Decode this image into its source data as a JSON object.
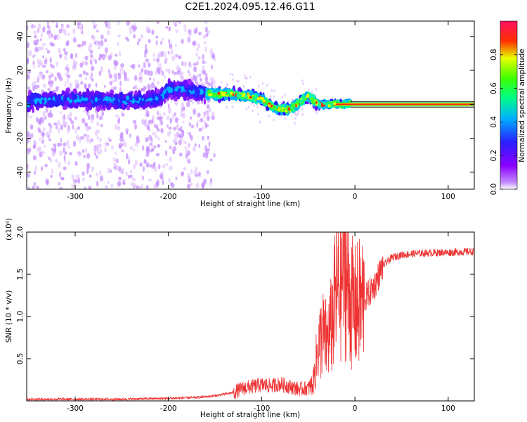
{
  "figure": {
    "title": "C2E1.2024.095.12.46.G11"
  },
  "chart_data": [
    {
      "type": "heatmap",
      "title": "",
      "xlabel": "Height of straight line (km)",
      "ylabel": "Frequency (Hz)",
      "xlim": [
        -352,
        128
      ],
      "ylim": [
        -50,
        49
      ],
      "xticks": [
        -300,
        -200,
        -100,
        0,
        100
      ],
      "xtick_labels": [
        "-300",
        "-200",
        "-100",
        "0",
        "100"
      ],
      "yticks": [
        -40,
        -20,
        0,
        20,
        40
      ],
      "ytick_labels": [
        "-40",
        "-20",
        "0",
        "20",
        "40"
      ],
      "colorbar": {
        "label": "Normalized spectral amplitude",
        "range": [
          0,
          1
        ],
        "ticks": [
          0.0,
          0.2,
          0.4,
          0.6,
          0.8
        ],
        "tick_labels": [
          "0.0",
          "0.2",
          "0.4",
          "0.6",
          "0.8"
        ],
        "colormap": [
          "#ffffff",
          "#8a00ff",
          "#2a20ff",
          "#00e0ff",
          "#00ff40",
          "#e8ff00",
          "#ff3000",
          "#ff1060"
        ]
      },
      "frequency_track": {
        "x": [
          -350,
          -300,
          -250,
          -210,
          -200,
          -180,
          -150,
          -130,
          -115,
          -100,
          -90,
          -80,
          -70,
          -60,
          -50,
          -40,
          -30,
          -20,
          -10,
          0,
          10,
          50,
          100,
          128
        ],
        "y": [
          2,
          3,
          2,
          3,
          9,
          8,
          6,
          6,
          5,
          3,
          -1,
          -3,
          -3,
          1,
          5,
          0,
          0,
          0,
          0,
          1,
          0,
          0,
          0,
          0
        ]
      },
      "grid": false
    },
    {
      "type": "line",
      "title": "",
      "xlabel": "Height of straight line (km)",
      "ylabel": "SNR (10 * v/v)",
      "y_multiplier": "(x10⁴)",
      "xlim": [
        -352,
        128
      ],
      "ylim": [
        0,
        2.0
      ],
      "xticks": [
        -300,
        -200,
        -100,
        0,
        100
      ],
      "xtick_labels": [
        "-300",
        "-200",
        "-100",
        "0",
        "100"
      ],
      "yticks": [
        0.5,
        1.0,
        1.5,
        2.0
      ],
      "ytick_labels": [
        "0.5",
        "1.0",
        "1.5",
        "2.0"
      ],
      "series": [
        {
          "color": "#ee3333",
          "x": [
            -352,
            -300,
            -250,
            -200,
            -170,
            -150,
            -130,
            -120,
            -110,
            -100,
            -90,
            -80,
            -70,
            -60,
            -50,
            -45,
            -40,
            -35,
            -30,
            -25,
            -20,
            -15,
            -12,
            -10,
            -5,
            0,
            10,
            20,
            30,
            40,
            50,
            70,
            100,
            128
          ],
          "y": [
            0.02,
            0.02,
            0.02,
            0.03,
            0.04,
            0.06,
            0.1,
            0.15,
            0.17,
            0.19,
            0.18,
            0.2,
            0.17,
            0.14,
            0.15,
            0.2,
            0.6,
            0.8,
            0.7,
            0.9,
            1.3,
            1.4,
            1.6,
            1.5,
            1.2,
            1.1,
            1.2,
            1.35,
            1.6,
            1.7,
            1.73,
            1.75,
            1.76,
            1.77
          ]
        }
      ],
      "grid": false
    }
  ]
}
